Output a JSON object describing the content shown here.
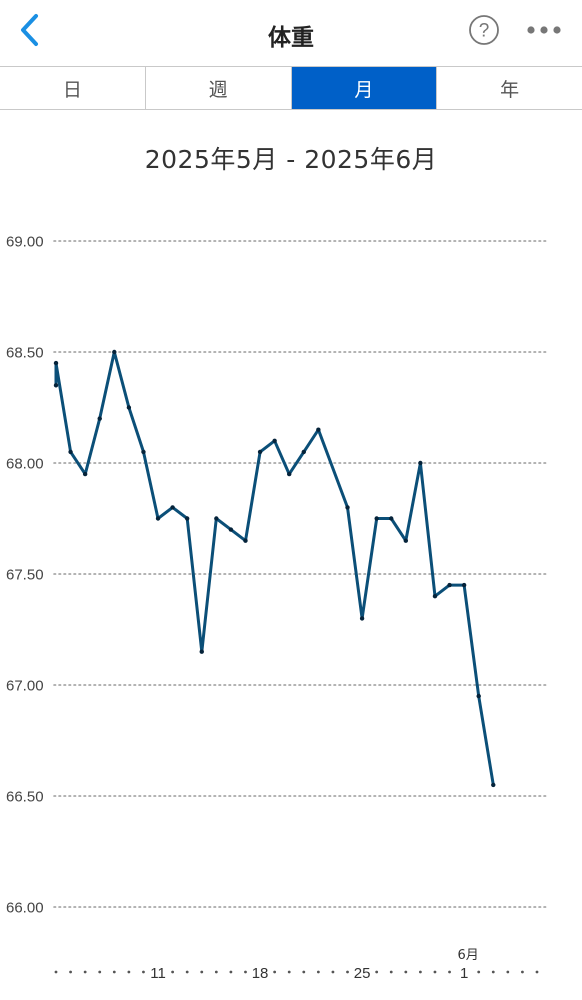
{
  "header": {
    "title": "体重",
    "back_icon": "chevron-left-icon",
    "help_icon": "question-circle-icon",
    "help_glyph": "?",
    "more_icon": "more-horizontal-icon"
  },
  "tabs": [
    {
      "label": "日",
      "active": false
    },
    {
      "label": "週",
      "active": false
    },
    {
      "label": "月",
      "active": true
    },
    {
      "label": "年",
      "active": false
    }
  ],
  "colors": {
    "accent": "#0060c8",
    "back": "#1a8fe3",
    "line": "#0b4f78"
  },
  "chart_data": {
    "type": "line",
    "title": "2025年5月 - 2025年6月",
    "xlabel": "",
    "ylabel": "",
    "ylim": [
      66.0,
      69.0
    ],
    "y_ticks": [
      "69.00",
      "68.50",
      "68.00",
      "67.50",
      "67.00",
      "66.50",
      "66.00"
    ],
    "x_start": "2025-05-04",
    "x_end": "2025-06-06",
    "x_tick_labels": [
      {
        "date": "2025-05-11",
        "label": "11"
      },
      {
        "date": "2025-05-18",
        "label": "18"
      },
      {
        "date": "2025-05-25",
        "label": "25"
      },
      {
        "date": "2025-06-01",
        "label": "1",
        "month_label": "6月"
      }
    ],
    "grid": true,
    "legend": "none",
    "series": [
      {
        "points": [
          [
            "2025-05-04",
            68.35
          ],
          [
            "2025-05-04",
            68.45
          ],
          [
            "2025-05-05",
            68.05
          ],
          [
            "2025-05-06",
            67.95
          ],
          [
            "2025-05-07",
            68.2
          ],
          [
            "2025-05-08",
            68.5
          ],
          [
            "2025-05-09",
            68.25
          ],
          [
            "2025-05-10",
            68.05
          ],
          [
            "2025-05-11",
            67.75
          ],
          [
            "2025-05-12",
            67.8
          ],
          [
            "2025-05-13",
            67.75
          ],
          [
            "2025-05-14",
            67.15
          ],
          [
            "2025-05-15",
            67.75
          ],
          [
            "2025-05-16",
            67.7
          ],
          [
            "2025-05-17",
            67.65
          ],
          [
            "2025-05-18",
            68.05
          ],
          [
            "2025-05-19",
            68.1
          ],
          [
            "2025-05-20",
            67.95
          ],
          [
            "2025-05-21",
            68.05
          ],
          [
            "2025-05-22",
            68.15
          ],
          [
            "2025-05-24",
            67.8
          ],
          [
            "2025-05-25",
            67.3
          ],
          [
            "2025-05-26",
            67.75
          ],
          [
            "2025-05-27",
            67.75
          ],
          [
            "2025-05-28",
            67.65
          ],
          [
            "2025-05-29",
            68.0
          ],
          [
            "2025-05-30",
            67.4
          ],
          [
            "2025-05-31",
            67.45
          ],
          [
            "2025-06-01",
            67.45
          ],
          [
            "2025-06-02",
            66.95
          ],
          [
            "2025-06-03",
            66.55
          ]
        ]
      }
    ]
  }
}
